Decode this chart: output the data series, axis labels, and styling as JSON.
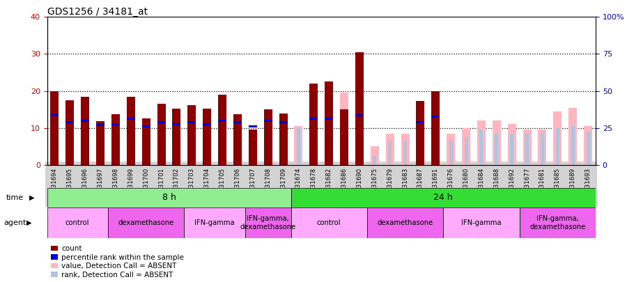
{
  "title": "GDS1256 / 34181_at",
  "samples": [
    "GSM31694",
    "GSM31695",
    "GSM31696",
    "GSM31697",
    "GSM31698",
    "GSM31699",
    "GSM31700",
    "GSM31701",
    "GSM31702",
    "GSM31703",
    "GSM31704",
    "GSM31705",
    "GSM31706",
    "GSM31707",
    "GSM31708",
    "GSM31709",
    "GSM31674",
    "GSM31678",
    "GSM31682",
    "GSM31686",
    "GSM31690",
    "GSM31675",
    "GSM31679",
    "GSM31683",
    "GSM31687",
    "GSM31691",
    "GSM31676",
    "GSM31680",
    "GSM31684",
    "GSM31688",
    "GSM31692",
    "GSM31677",
    "GSM31681",
    "GSM31685",
    "GSM31689",
    "GSM31693"
  ],
  "count_values": [
    20.0,
    17.5,
    18.5,
    11.8,
    13.8,
    18.5,
    12.5,
    16.5,
    15.2,
    16.2,
    15.2,
    19.0,
    13.8,
    9.5,
    15.0,
    14.0,
    0,
    22.0,
    22.5,
    15.0,
    30.5,
    0,
    0,
    0,
    17.2,
    20.0,
    0,
    0,
    0,
    0,
    0,
    0,
    0,
    0,
    0,
    0
  ],
  "percentile_vals": [
    13.5,
    11.5,
    12.0,
    10.8,
    11.0,
    12.5,
    10.5,
    11.5,
    11.0,
    11.5,
    11.0,
    12.0,
    11.5,
    10.5,
    12.0,
    11.5,
    0,
    12.5,
    12.5,
    0,
    13.5,
    0,
    0,
    0,
    11.5,
    13.0,
    0,
    0,
    0,
    0,
    0,
    0,
    0,
    0,
    0,
    0
  ],
  "absent_value": [
    0,
    0,
    0,
    0,
    0,
    0,
    0,
    0,
    0,
    0,
    0,
    0,
    0,
    0,
    0,
    0,
    10.5,
    0,
    0,
    19.5,
    0,
    5.0,
    8.5,
    8.5,
    0,
    0,
    8.5,
    10.0,
    12.0,
    12.0,
    11.0,
    9.5,
    9.5,
    14.5,
    15.5,
    10.5
  ],
  "absent_rank": [
    0,
    0,
    0,
    0,
    0,
    0,
    0,
    0,
    0,
    0,
    0,
    0,
    0,
    0,
    0,
    0,
    10.0,
    0,
    0,
    0,
    0,
    2.5,
    6.5,
    6.5,
    0,
    0,
    6.5,
    7.5,
    9.5,
    8.5,
    8.5,
    8.5,
    8.5,
    10.0,
    10.5,
    9.0
  ],
  "time_groups": [
    {
      "label": "8 h",
      "start": 0,
      "end": 16,
      "color": "#90EE90"
    },
    {
      "label": "24 h",
      "start": 16,
      "end": 36,
      "color": "#33DD33"
    }
  ],
  "agent_groups": [
    {
      "label": "control",
      "start": 0,
      "end": 4,
      "color": "#FFAAFF"
    },
    {
      "label": "dexamethasone",
      "start": 4,
      "end": 9,
      "color": "#EE66EE"
    },
    {
      "label": "IFN-gamma",
      "start": 9,
      "end": 13,
      "color": "#FFAAFF"
    },
    {
      "label": "IFN-gamma,\ndexamethasone",
      "start": 13,
      "end": 16,
      "color": "#EE66EE"
    },
    {
      "label": "control",
      "start": 16,
      "end": 21,
      "color": "#FFAAFF"
    },
    {
      "label": "dexamethasone",
      "start": 21,
      "end": 26,
      "color": "#EE66EE"
    },
    {
      "label": "IFN-gamma",
      "start": 26,
      "end": 31,
      "color": "#FFAAFF"
    },
    {
      "label": "IFN-gamma,\ndexamethasone",
      "start": 31,
      "end": 36,
      "color": "#EE66EE"
    }
  ],
  "color_count": "#8B0000",
  "color_percentile": "#0000CC",
  "color_absent_value": "#FFB6C1",
  "color_absent_rank": "#B0C4DE",
  "bar_width": 0.55,
  "ylim": [
    0,
    40
  ],
  "yticks": [
    0,
    10,
    20,
    30,
    40
  ],
  "left_axis_color": "#CC0000",
  "right_axis_color": "#0000CC",
  "xtick_bg": "#D3D3D3"
}
